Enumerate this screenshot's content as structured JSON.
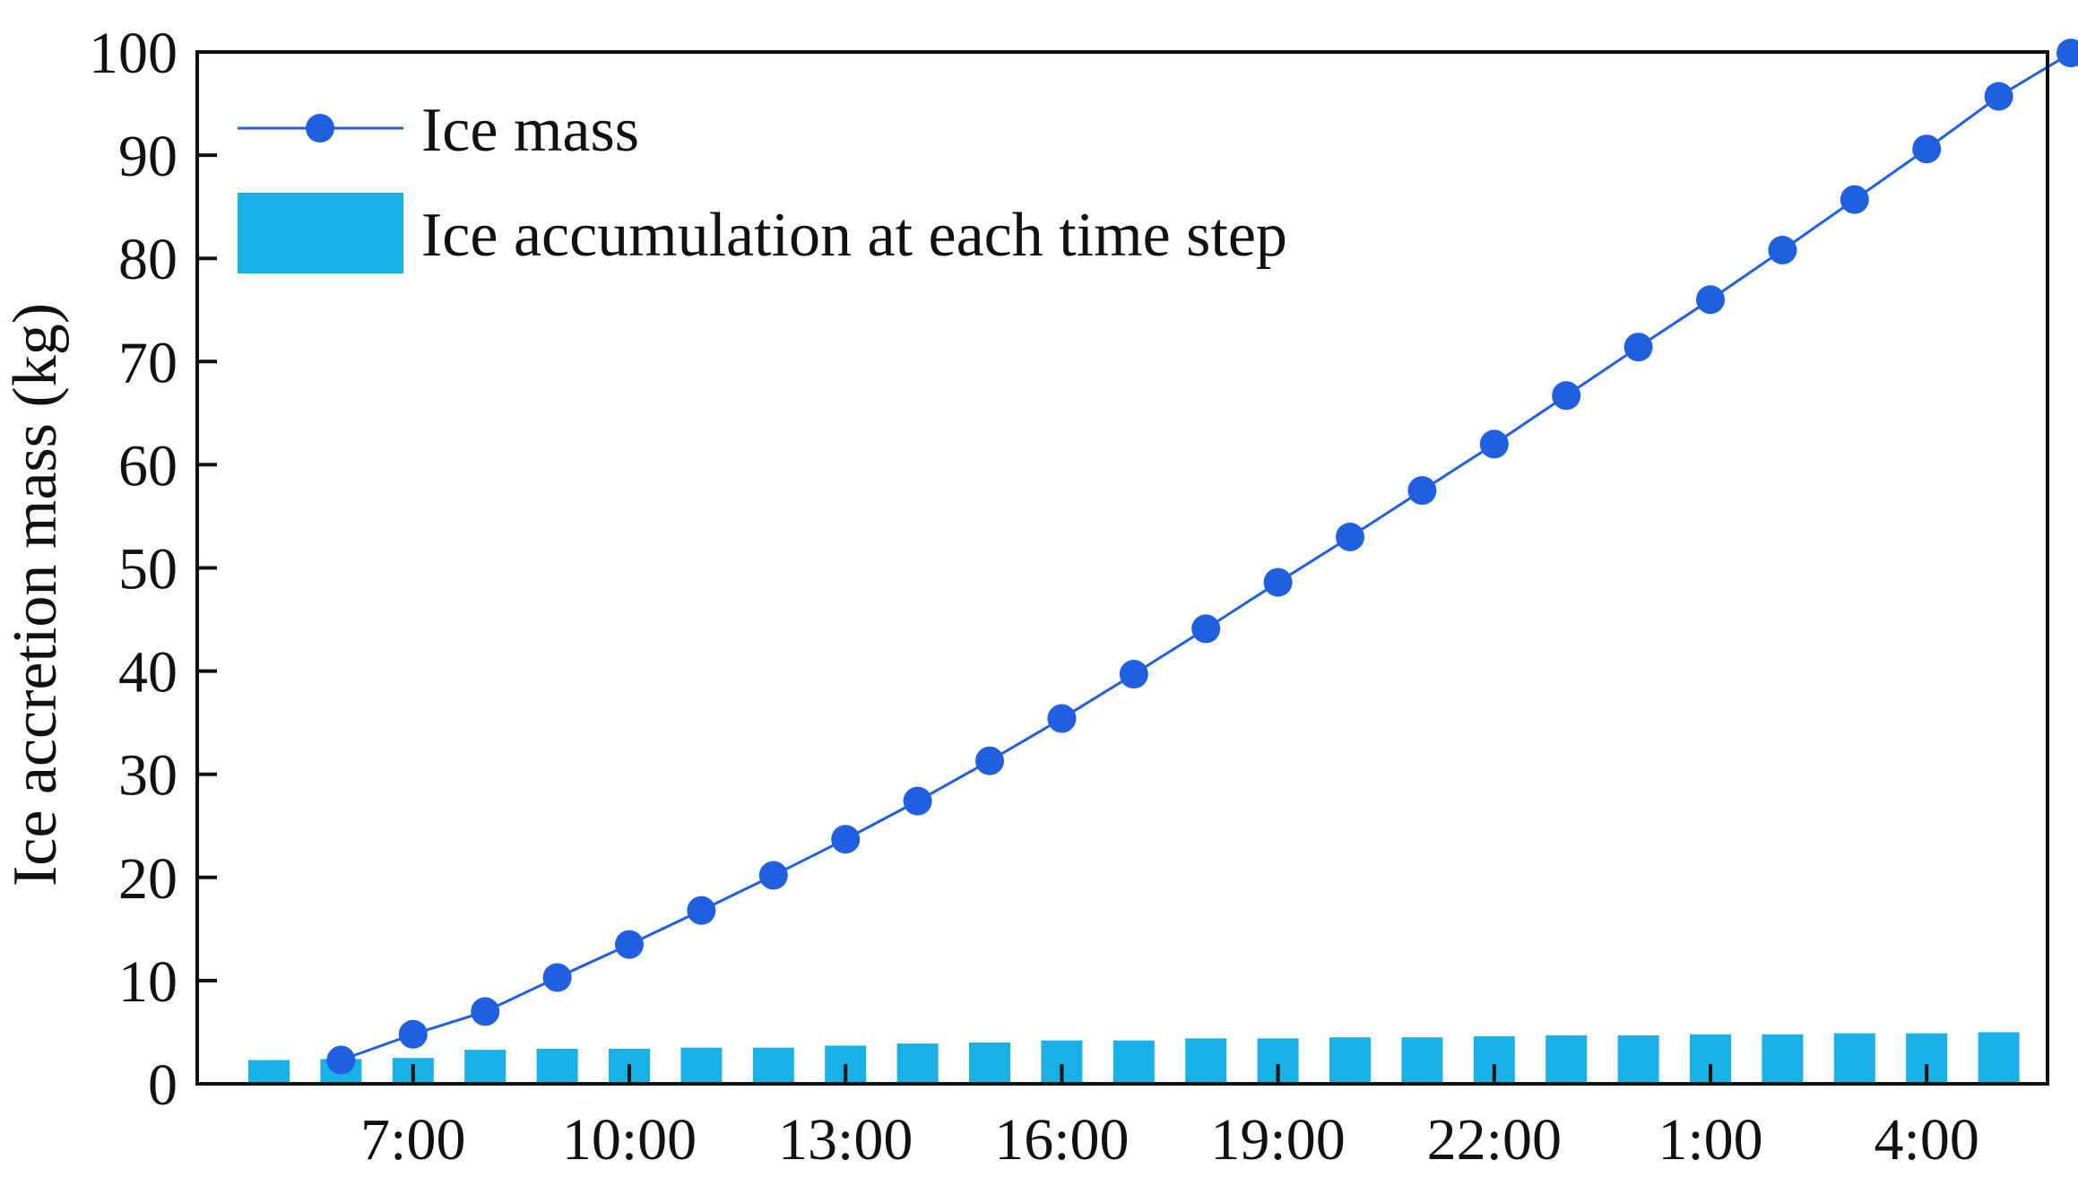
{
  "chart_data": {
    "type": "bar+line",
    "title": "",
    "xlabel": "",
    "ylabel": "Ice accretion mass (kg)",
    "ylim": [
      0,
      100
    ],
    "yticks": [
      0,
      10,
      20,
      30,
      40,
      50,
      60,
      70,
      80,
      90,
      100
    ],
    "xtick_labels": [
      {
        "slot": 2,
        "label": "7:00"
      },
      {
        "slot": 5,
        "label": "10:00"
      },
      {
        "slot": 8,
        "label": "13:00"
      },
      {
        "slot": 11,
        "label": "16:00"
      },
      {
        "slot": 14,
        "label": "19:00"
      },
      {
        "slot": 17,
        "label": "22:00"
      },
      {
        "slot": 20,
        "label": "1:00"
      },
      {
        "slot": 23,
        "label": "4:00"
      }
    ],
    "bar_series": {
      "name": "Ice accumulation at each time step",
      "color": "#1ab0e6",
      "slots": [
        0,
        1,
        2,
        3,
        4,
        5,
        6,
        7,
        8,
        9,
        10,
        11,
        12,
        13,
        14,
        15,
        16,
        17,
        18,
        19,
        20,
        21,
        22,
        23,
        24
      ],
      "values": [
        2.3,
        2.4,
        2.5,
        3.3,
        3.4,
        3.4,
        3.5,
        3.5,
        3.7,
        3.9,
        4.0,
        4.2,
        4.2,
        4.4,
        4.4,
        4.5,
        4.5,
        4.6,
        4.7,
        4.7,
        4.8,
        4.8,
        4.9,
        4.9,
        5.0
      ]
    },
    "line_series": {
      "name": "Ice mass",
      "color": "#1f5fe0",
      "slots": [
        1,
        2,
        3,
        4,
        5,
        6,
        7,
        8,
        9,
        10,
        11,
        12,
        13,
        14,
        15,
        16,
        17,
        18,
        19,
        20,
        21,
        22,
        23,
        24,
        25
      ],
      "values": [
        2.3,
        4.8,
        7.0,
        10.3,
        13.5,
        16.8,
        20.2,
        23.7,
        27.4,
        31.3,
        35.4,
        39.7,
        44.1,
        48.6,
        53.0,
        57.5,
        62.0,
        66.7,
        71.4,
        76.0,
        80.8,
        85.7,
        90.6,
        95.7,
        99.9
      ]
    },
    "legend": {
      "position": "top-left",
      "entries": [
        "Ice mass",
        "Ice accumulation at each time step"
      ]
    }
  }
}
